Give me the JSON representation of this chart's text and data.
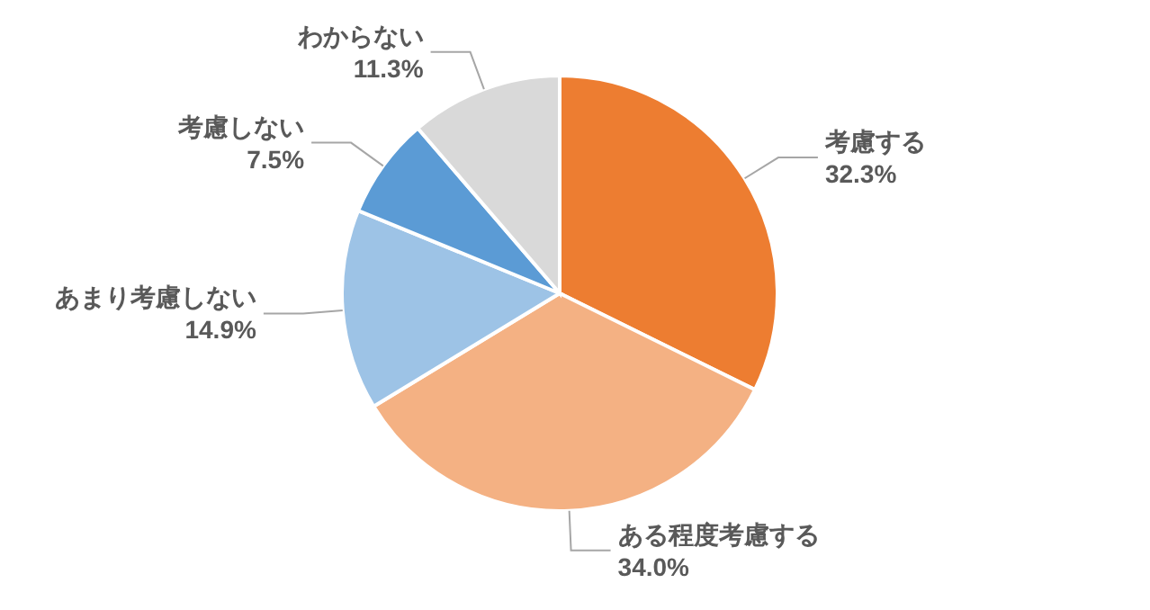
{
  "chart_data": {
    "type": "pie",
    "categories": [
      "考慮する",
      "ある程度考慮する",
      "あまり考慮しない",
      "考慮しない",
      "わからない"
    ],
    "values": [
      32.3,
      34.0,
      14.9,
      7.5,
      11.3
    ],
    "value_labels": [
      "32.3%",
      "34.0%",
      "14.9%",
      "7.5%",
      "11.3%"
    ],
    "colors": [
      "#ed7d31",
      "#f4b183",
      "#9dc3e6",
      "#5b9bd5",
      "#d9d9d9"
    ],
    "legend": false
  }
}
